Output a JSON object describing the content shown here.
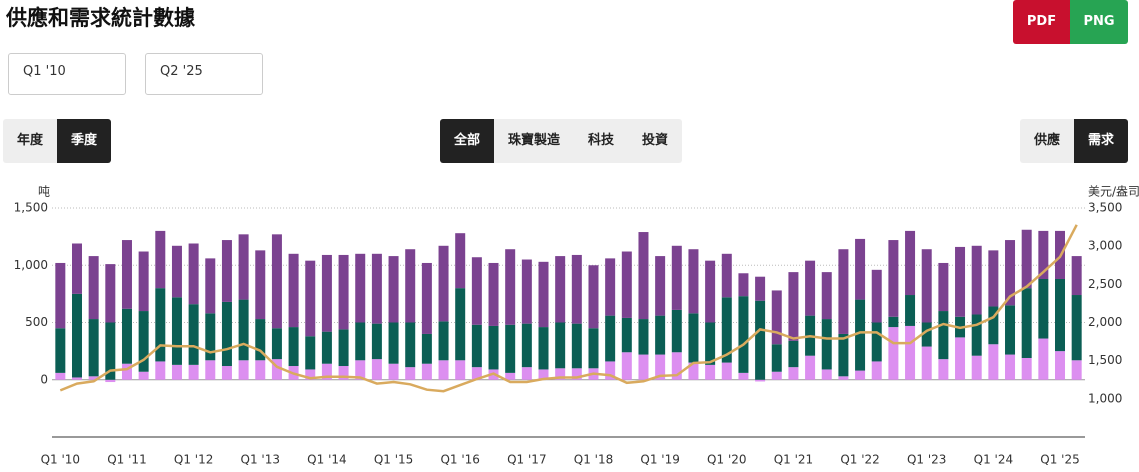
{
  "title": "供應和需求統計數據",
  "controls": {
    "from": "Q1 '10",
    "to": "Q2 '25",
    "export": [
      "PDF",
      "PNG"
    ],
    "period": [
      "年度",
      "季度"
    ],
    "period_active": 1,
    "sector": [
      "全部",
      "珠寶製造",
      "科技",
      "投資"
    ],
    "sector_active": 0,
    "side": [
      "供應",
      "需求"
    ],
    "side_active": 1
  },
  "chart_data": {
    "type": "bar",
    "stacked": true,
    "ylabel": "吨",
    "y2label": "美元/盎司",
    "categories": [
      "Q1 '10",
      null,
      null,
      null,
      "Q1 '11",
      null,
      null,
      null,
      "Q1 '12",
      null,
      null,
      null,
      "Q1 '13",
      null,
      null,
      null,
      "Q1 '14",
      null,
      null,
      null,
      "Q1 '15",
      null,
      null,
      null,
      "Q1 '16",
      null,
      null,
      null,
      "Q1 '17",
      null,
      null,
      null,
      "Q1 '18",
      null,
      null,
      null,
      "Q1 '19",
      null,
      null,
      null,
      "Q1 '20",
      null,
      null,
      null,
      "Q1 '21",
      null,
      null,
      null,
      "Q1 '22",
      null,
      null,
      null,
      "Q1 '23",
      null,
      null,
      null,
      "Q1 '24",
      null,
      null,
      null,
      "Q1 '25",
      null
    ],
    "series": [
      {
        "color": "#dc8ff0",
        "values": [
          60,
          20,
          30,
          -20,
          140,
          70,
          160,
          130,
          130,
          170,
          120,
          170,
          170,
          180,
          120,
          90,
          140,
          120,
          170,
          180,
          140,
          110,
          140,
          170,
          170,
          110,
          90,
          60,
          110,
          90,
          100,
          100,
          100,
          160,
          240,
          220,
          220,
          240,
          150,
          130,
          150,
          60,
          -15,
          70,
          110,
          210,
          90,
          30,
          80,
          160,
          460,
          470,
          290,
          180,
          370,
          210,
          310,
          220,
          190,
          360,
          250,
          170
        ]
      },
      {
        "color": "#0b5e54",
        "values": [
          390,
          730,
          500,
          500,
          480,
          530,
          640,
          590,
          530,
          410,
          560,
          530,
          360,
          270,
          340,
          290,
          280,
          320,
          330,
          310,
          360,
          390,
          260,
          340,
          630,
          370,
          380,
          420,
          380,
          370,
          400,
          390,
          350,
          400,
          300,
          310,
          340,
          370,
          430,
          370,
          570,
          670,
          690,
          240,
          230,
          350,
          440,
          370,
          620,
          340,
          90,
          270,
          210,
          420,
          180,
          360,
          330,
          430,
          610,
          520,
          630,
          570
        ]
      },
      {
        "color": "#7b4290",
        "values": [
          570,
          440,
          550,
          510,
          600,
          520,
          500,
          450,
          530,
          480,
          540,
          570,
          600,
          820,
          640,
          660,
          670,
          650,
          600,
          610,
          580,
          640,
          620,
          660,
          480,
          590,
          550,
          660,
          560,
          570,
          580,
          600,
          550,
          500,
          580,
          760,
          520,
          560,
          560,
          540,
          380,
          200,
          210,
          470,
          600,
          480,
          410,
          740,
          530,
          460,
          670,
          560,
          640,
          420,
          610,
          600,
          490,
          570,
          510,
          420,
          420,
          340
        ]
      },
      {
        "type": "line",
        "axis": "y2",
        "color": "#d9aa5e",
        "values": [
          1110,
          1200,
          1230,
          1370,
          1390,
          1510,
          1700,
          1690,
          1690,
          1610,
          1650,
          1720,
          1630,
          1420,
          1330,
          1270,
          1290,
          1290,
          1280,
          1200,
          1220,
          1190,
          1120,
          1100,
          1180,
          1260,
          1330,
          1220,
          1220,
          1260,
          1280,
          1280,
          1330,
          1310,
          1210,
          1230,
          1300,
          1310,
          1470,
          1480,
          1580,
          1710,
          1910,
          1870,
          1790,
          1820,
          1790,
          1790,
          1870,
          1870,
          1730,
          1730,
          1890,
          1980,
          1930,
          1970,
          2070,
          2340,
          2470,
          2660,
          2860,
          3280
        ]
      }
    ],
    "ylim": [
      -500,
      1500
    ],
    "yticks": [
      0,
      500,
      {
        "value": 1000,
        "label": "1,000"
      },
      {
        "value": 1500,
        "label": "1,500"
      }
    ],
    "y2lim": [
      500,
      3500
    ],
    "y2ticks": [
      {
        "value": 1000,
        "label": "1,000"
      },
      {
        "value": 1500,
        "label": "1,500"
      },
      {
        "value": 2000,
        "label": "2,000"
      },
      {
        "value": 2500,
        "label": "2,500"
      },
      {
        "value": 3000,
        "label": "3,000"
      },
      {
        "value": 3500,
        "label": "3,500"
      }
    ],
    "grid": true
  }
}
